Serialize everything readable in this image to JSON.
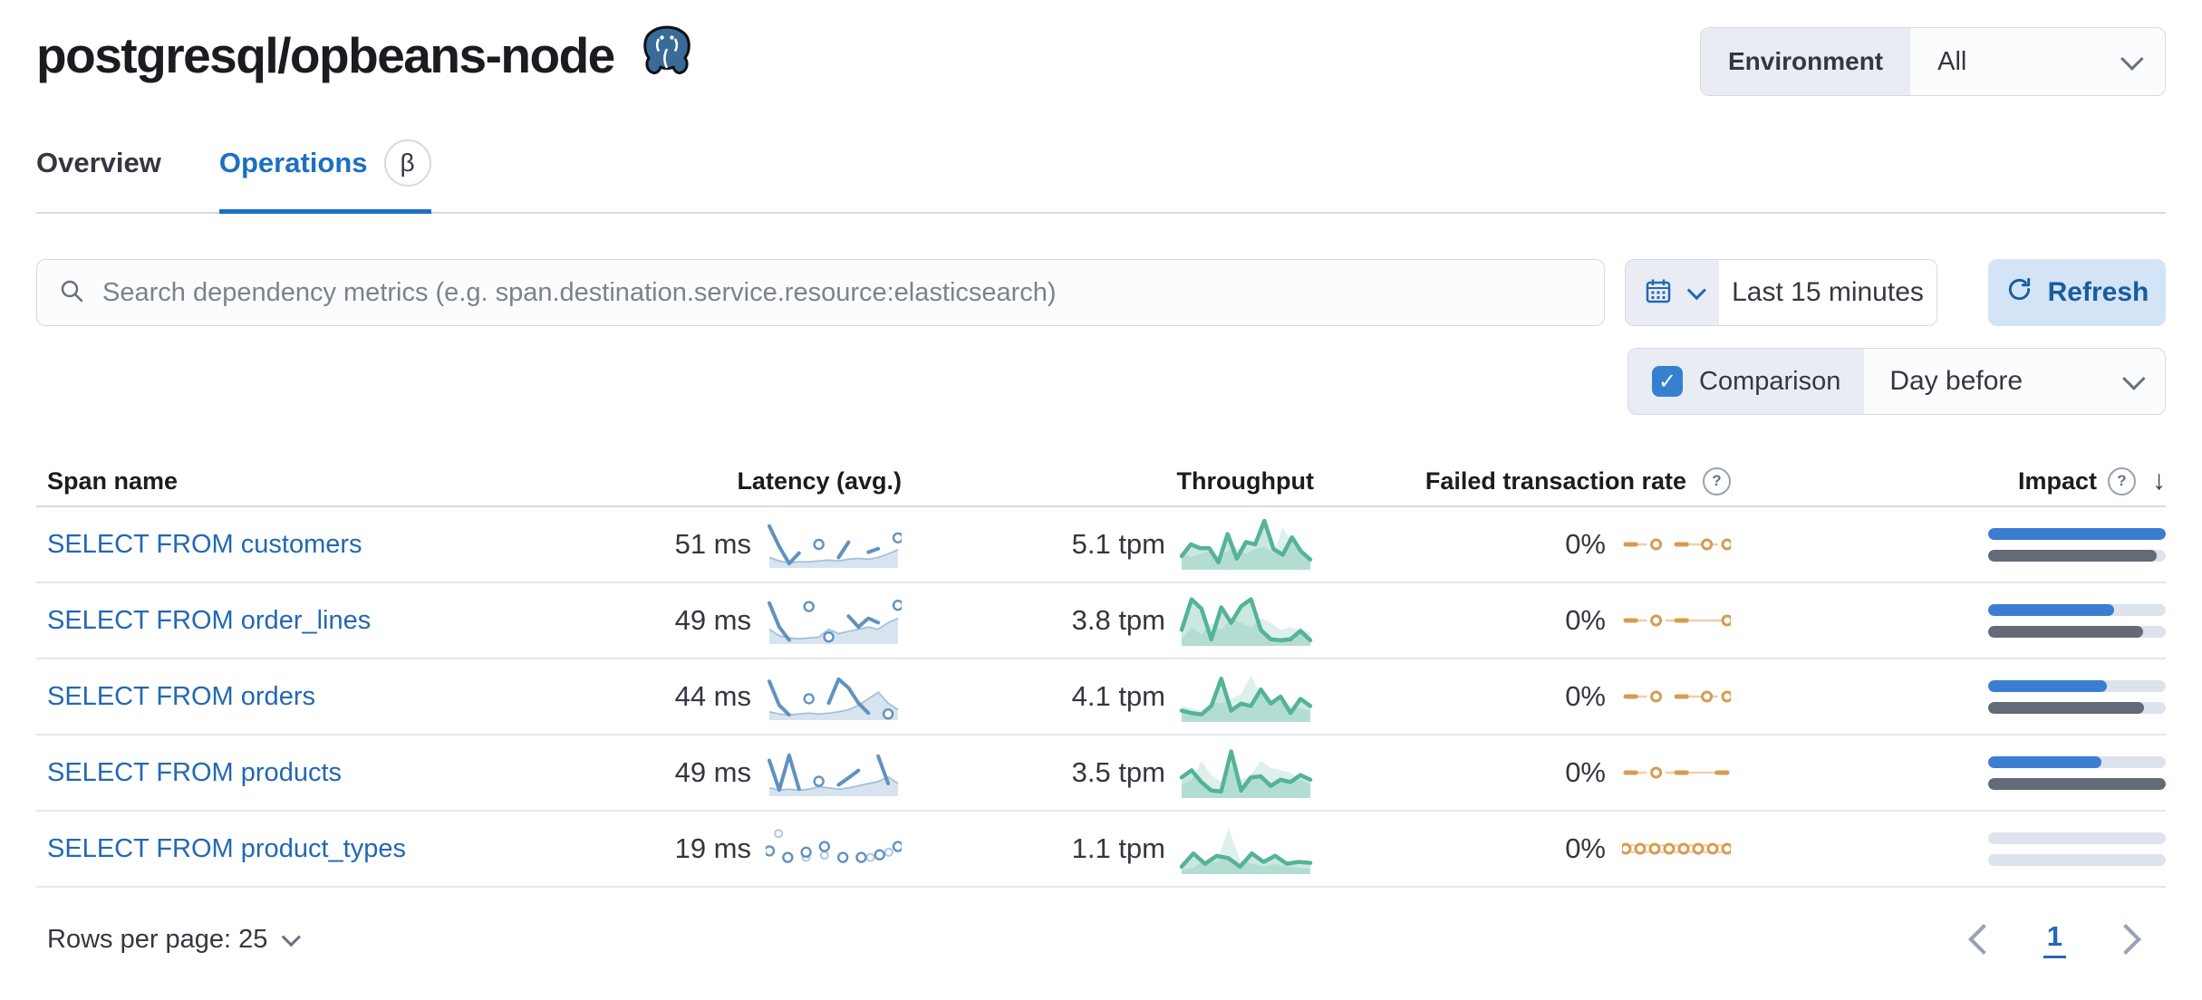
{
  "header": {
    "title": "postgresql/opbeans-node",
    "environment_label": "Environment",
    "environment_value": "All"
  },
  "tabs": [
    {
      "label": "Overview",
      "active": false
    },
    {
      "label": "Operations",
      "active": true,
      "beta": "β"
    }
  ],
  "toolbar": {
    "search_placeholder": "Search dependency metrics (e.g. span.destination.service.resource:elasticsearch)",
    "time_range": "Last 15 minutes",
    "refresh_label": "Refresh",
    "comparison_label": "Comparison",
    "comparison_checked": "✓",
    "comparison_value": "Day before"
  },
  "table": {
    "columns": [
      "Span name",
      "Latency (avg.)",
      "Throughput",
      "Failed transaction rate",
      "Impact"
    ],
    "rows": [
      {
        "name": "SELECT FROM customers",
        "latency": "51 ms",
        "throughput": "5.1 tpm",
        "failed": "0%",
        "impact": 100,
        "impact_prev": 95
      },
      {
        "name": "SELECT FROM order_lines",
        "latency": "49 ms",
        "throughput": "3.8 tpm",
        "failed": "0%",
        "impact": 71,
        "impact_prev": 87
      },
      {
        "name": "SELECT FROM orders",
        "latency": "44 ms",
        "throughput": "4.1 tpm",
        "failed": "0%",
        "impact": 67,
        "impact_prev": 88
      },
      {
        "name": "SELECT FROM products",
        "latency": "49 ms",
        "throughput": "3.5 tpm",
        "failed": "0%",
        "impact": 64,
        "impact_prev": 100
      },
      {
        "name": "SELECT FROM product_types",
        "latency": "19 ms",
        "throughput": "1.1 tpm",
        "failed": "0%",
        "impact": 0,
        "impact_prev": 0
      }
    ]
  },
  "pagination": {
    "rows_per_page": "Rows per page: 25",
    "page": "1"
  },
  "chart_data": {
    "type": "line",
    "description": "Sparklines per table row; values normalized 0-1, null = gap (isolated points render as hollow circles). comp = previous-period comparison series.",
    "colors": {
      "latency_main": "#6092C0",
      "latency_comp_fill": "rgba(96,146,192,0.25)",
      "latency_comp_stroke": "rgba(96,146,192,0.5)",
      "throughput_main": "#54B399",
      "throughput_main_fill": "rgba(84,179,153,0.30)",
      "throughput_comp_fill": "rgba(84,179,153,0.20)",
      "failed_main": "#D79B51",
      "failed_comp": "rgba(223,170,108,0.55)",
      "impact_current": "#3C7DD4",
      "impact_previous": "#646A77",
      "impact_track": "#DDE3EC"
    },
    "rows": [
      {
        "latency": {
          "main": [
            0.92,
            0.45,
            0.06,
            0.3,
            null,
            0.5,
            null,
            0.2,
            0.55,
            null,
            0.32,
            0.4,
            null,
            0.65
          ],
          "comp": [
            0.2,
            0.12,
            0.08,
            0.1,
            0.1,
            0.12,
            0.14,
            0.12,
            0.16,
            0.18,
            0.16,
            0.2,
            0.28,
            0.38
          ]
        },
        "throughput": {
          "main": [
            0.25,
            0.5,
            0.42,
            0.42,
            0.12,
            0.72,
            0.2,
            0.55,
            0.5,
            1.0,
            0.4,
            0.28,
            0.65,
            0.35,
            0.18
          ],
          "comp": [
            0.35,
            0.22,
            0.3,
            0.35,
            0.25,
            0.35,
            0.45,
            0.3,
            0.4,
            0.45,
            0.3,
            0.85,
            0.55,
            0.3,
            0.2
          ]
        },
        "failed": {
          "main": [
            0.5,
            0.5,
            null,
            0.5,
            null,
            0.5,
            0.5,
            null,
            0.5,
            null,
            0.5
          ],
          "comp": [
            0.5,
            0.5,
            0.5,
            null,
            null,
            0.5,
            0.5,
            0.5,
            0.5,
            0.5,
            null
          ],
          "comp_mode": "line"
        }
      },
      {
        "latency": {
          "main": [
            0.9,
            0.35,
            0.05,
            null,
            0.82,
            null,
            0.12,
            null,
            0.6,
            0.35,
            0.55,
            0.45,
            null,
            0.85
          ],
          "comp": [
            0.3,
            0.15,
            0.1,
            0.08,
            0.1,
            0.12,
            0.3,
            0.2,
            0.25,
            0.3,
            0.35,
            0.3,
            0.45,
            0.55
          ]
        },
        "throughput": {
          "main": [
            0.3,
            0.95,
            0.75,
            0.1,
            0.78,
            0.45,
            0.8,
            0.95,
            0.3,
            0.1,
            0.08,
            0.1,
            0.28,
            0.08
          ],
          "comp": [
            0.1,
            0.35,
            0.2,
            0.45,
            0.3,
            0.55,
            0.45,
            0.35,
            0.55,
            0.45,
            0.3,
            0.35,
            0.3,
            0.25
          ]
        },
        "failed": {
          "main": [
            0.5,
            0.5,
            null,
            0.5,
            null,
            0.5,
            0.5,
            null,
            null,
            null,
            0.5
          ],
          "comp": [
            0.5,
            0.5,
            0.5,
            null,
            0.5,
            0.5,
            0.5,
            0.5,
            0.5,
            0.5,
            0.5
          ],
          "comp_mode": "line"
        }
      },
      {
        "latency": {
          "main": [
            0.85,
            0.3,
            0.08,
            null,
            0.45,
            null,
            0.35,
            0.9,
            0.7,
            0.35,
            0.12,
            null,
            0.1,
            null
          ],
          "comp": [
            0.15,
            0.1,
            0.08,
            0.1,
            0.12,
            0.1,
            0.12,
            0.15,
            0.2,
            0.3,
            0.45,
            0.6,
            0.35,
            0.2
          ]
        },
        "throughput": {
          "main": [
            0.2,
            0.15,
            0.12,
            0.3,
            0.88,
            0.2,
            0.35,
            0.3,
            0.65,
            0.35,
            0.5,
            0.15,
            0.45,
            0.3
          ],
          "comp": [
            0.3,
            0.25,
            0.2,
            0.4,
            0.35,
            0.45,
            0.55,
            0.95,
            0.55,
            0.4,
            0.5,
            0.3,
            0.25,
            0.2
          ]
        },
        "failed": {
          "main": [
            0.5,
            0.5,
            null,
            0.5,
            null,
            0.5,
            0.5,
            null,
            0.5,
            null,
            0.5
          ],
          "comp": [
            0.5,
            0.5,
            0.5,
            null,
            null,
            0.5,
            0.5,
            0.5,
            0.5,
            0.5,
            null
          ],
          "comp_mode": "line"
        }
      },
      {
        "latency": {
          "main": [
            0.78,
            0.1,
            0.9,
            0.12,
            null,
            0.3,
            null,
            0.22,
            0.38,
            0.55,
            null,
            0.88,
            0.25,
            null
          ],
          "comp": [
            0.15,
            0.1,
            0.12,
            0.1,
            0.12,
            0.18,
            0.15,
            0.12,
            0.15,
            0.2,
            0.25,
            0.3,
            0.4,
            0.25
          ]
        },
        "throughput": {
          "main": [
            0.4,
            0.55,
            0.3,
            0.12,
            0.1,
            0.95,
            0.12,
            0.4,
            0.42,
            0.22,
            0.35,
            0.3,
            0.45,
            0.35
          ],
          "comp": [
            0.25,
            0.35,
            0.75,
            0.45,
            0.3,
            0.65,
            0.35,
            0.45,
            0.75,
            0.6,
            0.55,
            0.5,
            0.35,
            0.25
          ]
        },
        "failed": {
          "main": [
            0.5,
            0.5,
            null,
            0.5,
            null,
            0.5,
            0.5,
            null,
            null,
            0.5,
            0.5
          ],
          "comp": [
            0.5,
            0.5,
            0.5,
            null,
            0.5,
            0.5,
            0.5,
            0.5,
            0.5,
            0.5,
            0.5
          ],
          "comp_mode": "line"
        }
      },
      {
        "latency": {
          "main": [
            0.45,
            null,
            0.3,
            null,
            0.42,
            null,
            0.55,
            null,
            0.3,
            null,
            0.3,
            null,
            0.36,
            null,
            0.55
          ],
          "comp": [
            null,
            0.85,
            null,
            null,
            0.3,
            null,
            0.35,
            null,
            0.28,
            null,
            null,
            0.3,
            null,
            0.42,
            null
          ],
          "comp_mode": "line"
        },
        "throughput": {
          "main": [
            0.12,
            0.4,
            0.18,
            0.35,
            0.3,
            0.12,
            0.4,
            0.22,
            0.35,
            0.18,
            0.22,
            0.2
          ],
          "comp": [
            0.05,
            0.1,
            0.25,
            0.2,
            0.95,
            0.25,
            0.18,
            0.12,
            0.18,
            0.12,
            0.1,
            0.08
          ]
        },
        "failed": {
          "main": [
            0.5,
            null,
            0.5,
            null,
            0.5,
            null,
            0.5,
            null,
            0.5,
            null,
            0.5,
            null,
            0.5,
            null,
            0.5
          ],
          "comp": [
            null,
            0.5,
            null,
            0.5,
            null,
            0.5,
            null,
            0.5,
            null,
            0.5,
            null,
            0.5,
            null,
            0.5,
            null
          ],
          "comp_mode": "line"
        }
      }
    ]
  }
}
